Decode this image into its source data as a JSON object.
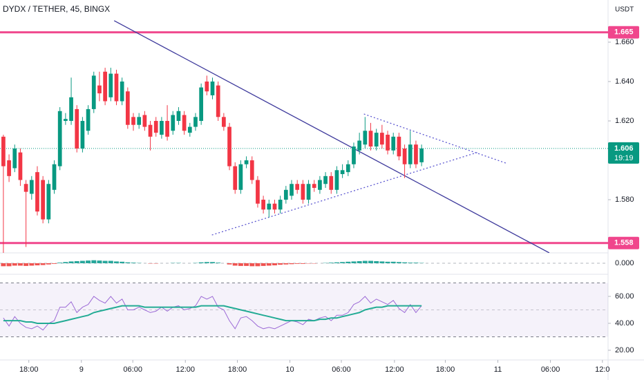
{
  "chart_data": {
    "type": "candlestick",
    "title": "DYDX / TETHER, 45, BINGX",
    "currency": "USDT",
    "up_color": "#089981",
    "down_color": "#f23645",
    "open": [
      1.612,
      1.6,
      1.596,
      1.604,
      1.588,
      1.583,
      1.594,
      1.59,
      1.57,
      1.585,
      1.597,
      1.62,
      1.62,
      1.626,
      1.606,
      1.615,
      1.626,
      1.638,
      1.645,
      1.632,
      1.644,
      1.63,
      1.635,
      1.622,
      1.618,
      1.623,
      1.618,
      1.62,
      1.613,
      1.62,
      1.615,
      1.62,
      1.623,
      1.614,
      1.617,
      1.62,
      1.64,
      1.633,
      1.638,
      1.622,
      1.617,
      1.597,
      1.585,
      1.598,
      1.6,
      1.59,
      1.58,
      1.575,
      1.578,
      1.575,
      1.58,
      1.582,
      1.588,
      1.588,
      1.58,
      1.588,
      1.585,
      1.588,
      1.592,
      1.585,
      1.593,
      1.594,
      1.598,
      1.605,
      1.608,
      1.615,
      1.607,
      1.614,
      1.613,
      1.605,
      1.612,
      1.606,
      1.598,
      1.608,
      1.599
    ],
    "high": [
      1.613,
      1.603,
      1.608,
      1.606,
      1.59,
      1.592,
      1.597,
      1.592,
      1.59,
      1.6,
      1.627,
      1.624,
      1.642,
      1.628,
      1.622,
      1.628,
      1.645,
      1.645,
      1.647,
      1.647,
      1.646,
      1.642,
      1.637,
      1.624,
      1.624,
      1.625,
      1.62,
      1.622,
      1.622,
      1.628,
      1.625,
      1.627,
      1.625,
      1.619,
      1.624,
      1.639,
      1.643,
      1.642,
      1.64,
      1.624,
      1.619,
      1.599,
      1.6,
      1.602,
      1.602,
      1.592,
      1.582,
      1.58,
      1.58,
      1.582,
      1.587,
      1.59,
      1.59,
      1.59,
      1.59,
      1.59,
      1.592,
      1.594,
      1.594,
      1.597,
      1.598,
      1.6,
      1.609,
      1.614,
      1.622,
      1.619,
      1.616,
      1.618,
      1.615,
      1.614,
      1.614,
      1.608,
      1.615,
      1.61,
      1.608
    ],
    "low": [
      1.553,
      1.589,
      1.594,
      1.587,
      1.556,
      1.58,
      1.572,
      1.568,
      1.568,
      1.583,
      1.595,
      1.618,
      1.618,
      1.604,
      1.604,
      1.613,
      1.624,
      1.63,
      1.628,
      1.63,
      1.628,
      1.628,
      1.616,
      1.615,
      1.616,
      1.615,
      1.605,
      1.612,
      1.611,
      1.61,
      1.613,
      1.618,
      1.613,
      1.612,
      1.615,
      1.618,
      1.633,
      1.631,
      1.62,
      1.615,
      1.595,
      1.583,
      1.583,
      1.596,
      1.588,
      1.576,
      1.573,
      1.571,
      1.573,
      1.573,
      1.578,
      1.58,
      1.583,
      1.578,
      1.578,
      1.584,
      1.583,
      1.586,
      1.583,
      1.583,
      1.591,
      1.592,
      1.596,
      1.603,
      1.606,
      1.605,
      1.605,
      1.606,
      1.603,
      1.603,
      1.6,
      1.591,
      1.596,
      1.596,
      1.597
    ],
    "close": [
      1.597,
      1.592,
      1.606,
      1.59,
      1.584,
      1.59,
      1.574,
      1.57,
      1.588,
      1.598,
      1.625,
      1.621,
      1.632,
      1.606,
      1.62,
      1.626,
      1.643,
      1.634,
      1.63,
      1.644,
      1.63,
      1.64,
      1.618,
      1.618,
      1.622,
      1.617,
      1.612,
      1.614,
      1.62,
      1.612,
      1.623,
      1.625,
      1.615,
      1.617,
      1.622,
      1.637,
      1.635,
      1.64,
      1.622,
      1.617,
      1.597,
      1.585,
      1.598,
      1.6,
      1.59,
      1.578,
      1.575,
      1.578,
      1.575,
      1.58,
      1.585,
      1.588,
      1.585,
      1.58,
      1.588,
      1.586,
      1.59,
      1.592,
      1.585,
      1.595,
      1.595,
      1.598,
      1.607,
      1.61,
      1.615,
      1.607,
      1.614,
      1.608,
      1.605,
      1.612,
      1.602,
      1.598,
      1.608,
      1.598,
      1.606
    ],
    "xlim": [
      -0.6,
      107
    ],
    "xticks": [
      {
        "value": 4.5,
        "label": "18:00"
      },
      {
        "value": 13.8,
        "label": "9"
      },
      {
        "value": 22.9,
        "label": "06:00"
      },
      {
        "value": 32.2,
        "label": "12:00"
      },
      {
        "value": 41.4,
        "label": "18:00"
      },
      {
        "value": 50.7,
        "label": "10"
      },
      {
        "value": 59.8,
        "label": "06:00"
      },
      {
        "value": 69.2,
        "label": "12:00"
      },
      {
        "value": 78.2,
        "label": "18:00"
      },
      {
        "value": 87.5,
        "label": "11"
      },
      {
        "value": 96.8,
        "label": "06:00"
      },
      {
        "value": 106,
        "label": "12:0"
      }
    ],
    "ylim": [
      1.553,
      1.6814
    ],
    "yticks": [
      {
        "value": 1.66,
        "label": "1.660"
      },
      {
        "value": 1.64,
        "label": "1.640"
      },
      {
        "value": 1.62,
        "label": "1.620"
      },
      {
        "value": 1.58,
        "label": "1.580"
      }
    ],
    "levels": [
      {
        "value": 1.665,
        "label": "1.665",
        "color": "#f0468c"
      },
      {
        "value": 1.558,
        "label": "1.558",
        "color": "#f0468c"
      }
    ],
    "last_price": {
      "value": 1.606,
      "label": "1.606",
      "countdown": "19:19",
      "color": "#089981"
    },
    "trendlines": [
      {
        "x": [
          19.6,
          96.6
        ],
        "y": [
          1.6709,
          1.553
        ],
        "color": "#3e3a9c",
        "style": "solid"
      },
      {
        "x": [
          36.9,
          84.1
        ],
        "y": [
          1.5621,
          1.6042
        ],
        "color": "#5a55d0",
        "style": "dotted"
      },
      {
        "x": [
          63.8,
          88.9
        ],
        "y": [
          1.6235,
          1.5986
        ],
        "color": "#5a55d0",
        "style": "dotted"
      }
    ],
    "macd": {
      "values": [
        -0.001,
        -0.001,
        -0.0008,
        -0.0008,
        -0.0009,
        -0.0008,
        -0.0007,
        -0.0006,
        -0.0004,
        -0.0002,
        0.0002,
        0.0004,
        0.0006,
        0.0007,
        0.0008,
        0.0009,
        0.001,
        0.0009,
        0.0008,
        0.0008,
        0.0006,
        0.0005,
        0.0003,
        0.0002,
        0.0001,
        0,
        -0.0001,
        -0.0001,
        0,
        0,
        0.0001,
        0.0001,
        0,
        0,
        0.0001,
        0.0003,
        0.0004,
        0.0004,
        0.0002,
        0,
        -0.0004,
        -0.0008,
        -0.0009,
        -0.0009,
        -0.001,
        -0.001,
        -0.0009,
        -0.0008,
        -0.0007,
        -0.0005,
        -0.0004,
        -0.0003,
        -0.0002,
        -0.0002,
        -0.0001,
        -0.0001,
        0,
        0.0001,
        0.0002,
        0.0003,
        0.0004,
        0.0005,
        0.0006,
        0.0007,
        0.0008,
        0.0008,
        0.0007,
        0.0006,
        0.0005,
        0.0005,
        0.0004,
        0.0003,
        0.0002,
        0.0002,
        0.0001
      ],
      "ylim": [
        -0.003,
        0.003
      ],
      "yticks": [
        {
          "value": 0,
          "label": "0.000"
        }
      ]
    },
    "rsi": {
      "series": [
        {
          "color": "#9c6ad6",
          "values": [
            44,
            38,
            45,
            40,
            37,
            36,
            38,
            35,
            40,
            42,
            52,
            52,
            56,
            48,
            52,
            54,
            60,
            57,
            55,
            60,
            55,
            58,
            50,
            50,
            52,
            50,
            48,
            49,
            52,
            49,
            52,
            53,
            50,
            51,
            53,
            60,
            58,
            60,
            52,
            50,
            42,
            36,
            44,
            45,
            42,
            38,
            36,
            37,
            36,
            38,
            40,
            42,
            41,
            39,
            43,
            42,
            44,
            45,
            42,
            46,
            46,
            48,
            54,
            56,
            60,
            55,
            58,
            56,
            54,
            57,
            51,
            48,
            54,
            48,
            53
          ]
        },
        {
          "color": "#22ab94",
          "values": [
            42,
            42,
            42,
            42,
            41,
            41,
            40,
            40,
            40,
            40,
            41,
            42,
            43,
            44,
            45,
            46,
            48,
            49,
            50,
            51,
            52,
            53,
            53,
            53,
            53,
            52,
            52,
            52,
            52,
            52,
            52,
            52,
            52,
            52,
            52,
            53,
            53,
            53,
            53,
            53,
            52,
            51,
            50,
            49,
            48,
            47,
            46,
            45,
            44,
            43,
            42,
            42,
            42,
            42,
            42,
            42,
            43,
            43,
            44,
            44,
            45,
            46,
            47,
            48,
            50,
            51,
            52,
            52,
            53,
            53,
            53,
            53,
            53,
            53,
            53
          ]
        }
      ],
      "bands": [
        70,
        50,
        30
      ],
      "ylim": [
        13.3,
        72.3
      ],
      "yticks": [
        {
          "value": 60,
          "label": "60.00"
        },
        {
          "value": 40,
          "label": "40.00"
        },
        {
          "value": 20,
          "label": "20.00"
        }
      ]
    }
  }
}
